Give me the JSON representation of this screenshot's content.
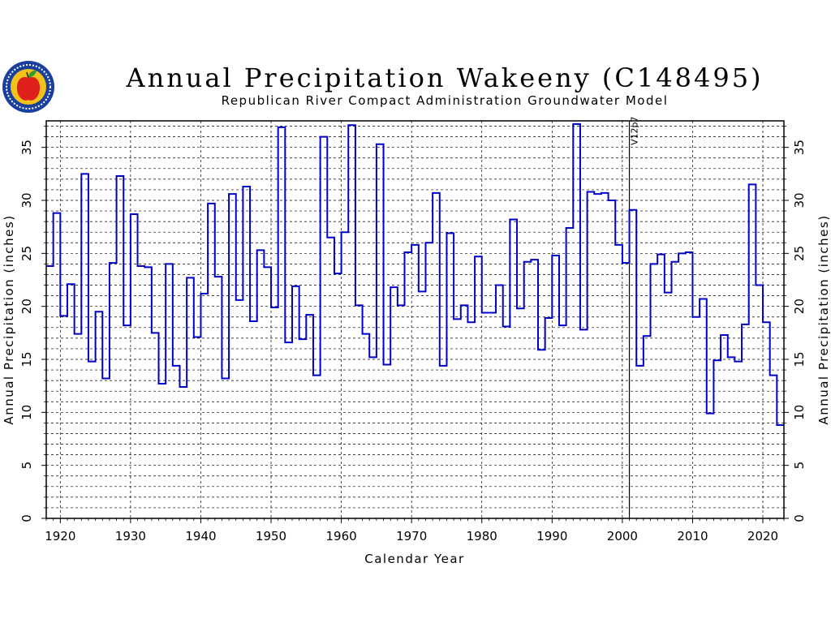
{
  "colors": {
    "series": "#0000cc",
    "grid": "#000000",
    "frame": "#000000",
    "logo_ring": "#1a3f9e",
    "logo_inner": "#f2c21b",
    "apple": "#e0201b",
    "leaf": "#2f9a2f"
  },
  "icons": {
    "logo": "apple-seal-logo"
  },
  "chart_data": {
    "type": "line",
    "step": true,
    "title": "Annual Precipitation Wakeeny (C148495)",
    "subtitle": "Republican River Compact Administration Groundwater Model",
    "xlabel": "Calendar Year",
    "ylabel": "Annual Precipitation (inches)",
    "y2label": "Annual Precipitation (inches)",
    "xlim": [
      1918,
      2023
    ],
    "ylim": [
      0,
      37.5
    ],
    "xticks": [
      "1920",
      "1930",
      "1940",
      "1950",
      "1960",
      "1970",
      "1980",
      "1990",
      "2000",
      "2010",
      "2020"
    ],
    "yticks": [
      "0",
      "5",
      "10",
      "15",
      "20",
      "25",
      "30",
      "35"
    ],
    "grid": true,
    "marker": {
      "x": 2001,
      "label": "V12p7"
    },
    "x": [
      1918,
      1919,
      1920,
      1921,
      1922,
      1923,
      1924,
      1925,
      1926,
      1927,
      1928,
      1929,
      1930,
      1931,
      1932,
      1933,
      1934,
      1935,
      1936,
      1937,
      1938,
      1939,
      1940,
      1941,
      1942,
      1943,
      1944,
      1945,
      1946,
      1947,
      1948,
      1949,
      1950,
      1951,
      1952,
      1953,
      1954,
      1955,
      1956,
      1957,
      1958,
      1959,
      1960,
      1961,
      1962,
      1963,
      1964,
      1965,
      1966,
      1967,
      1968,
      1969,
      1970,
      1971,
      1972,
      1973,
      1974,
      1975,
      1976,
      1977,
      1978,
      1979,
      1980,
      1981,
      1982,
      1983,
      1984,
      1985,
      1986,
      1987,
      1988,
      1989,
      1990,
      1991,
      1992,
      1993,
      1994,
      1995,
      1996,
      1997,
      1998,
      1999,
      2000,
      2001,
      2002,
      2003,
      2004,
      2005,
      2006,
      2007,
      2008,
      2009,
      2010,
      2011,
      2012,
      2013,
      2014,
      2015,
      2016,
      2017,
      2018,
      2019,
      2020,
      2021,
      2022
    ],
    "series": [
      {
        "values": [
          23.8,
          28.8,
          19.1,
          22.1,
          17.4,
          32.5,
          14.8,
          19.5,
          13.2,
          24.1,
          32.3,
          18.2,
          28.7,
          23.8,
          23.7,
          17.5,
          12.7,
          24.0,
          14.4,
          12.4,
          22.7,
          17.1,
          21.2,
          29.7,
          22.8,
          13.2,
          30.6,
          20.6,
          31.3,
          18.6,
          25.3,
          23.7,
          19.9,
          36.9,
          16.6,
          21.9,
          16.9,
          19.2,
          13.5,
          36.0,
          26.5,
          23.1,
          27.0,
          37.1,
          20.1,
          17.4,
          15.2,
          35.3,
          14.5,
          21.8,
          20.1,
          25.1,
          25.8,
          21.4,
          26.0,
          30.7,
          14.4,
          26.9,
          18.8,
          20.1,
          18.5,
          24.7,
          19.4,
          19.4,
          22.0,
          18.1,
          28.2,
          19.8,
          24.2,
          24.4,
          15.9,
          18.9,
          24.8,
          18.2,
          27.4,
          37.2,
          17.8,
          30.8,
          30.6,
          30.7,
          30.0,
          25.8,
          24.1,
          29.1,
          14.4,
          17.2,
          24.0,
          24.9,
          21.3,
          24.2,
          25.0,
          25.1,
          19.0,
          20.7,
          9.9,
          14.9,
          17.3,
          15.2,
          14.8,
          18.3,
          31.5,
          22.0,
          18.5,
          13.5,
          8.8
        ]
      }
    ]
  }
}
